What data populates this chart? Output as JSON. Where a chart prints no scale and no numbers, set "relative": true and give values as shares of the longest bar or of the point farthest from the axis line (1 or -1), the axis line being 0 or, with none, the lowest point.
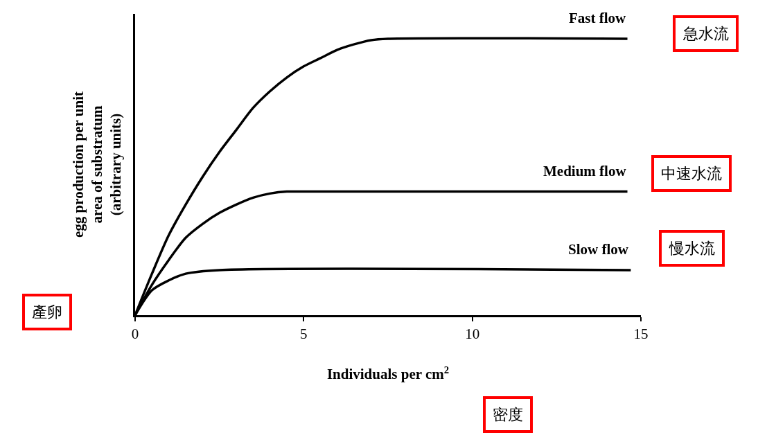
{
  "chart_data": {
    "type": "line",
    "relative": true,
    "xlabel": "Individuals per cm$^{2}$",
    "ylabel": "egg production per unit area of substratum (arbitrary units)",
    "xlim": [
      0,
      15
    ],
    "xticks": [
      0,
      5,
      10,
      15
    ],
    "legend": false,
    "marker": "none",
    "line_style": "solid",
    "series": [
      {
        "name": "Fast flow",
        "color": "#000000",
        "x": [
          0,
          0.5,
          1,
          1.5,
          2,
          2.5,
          3,
          3.5,
          4,
          4.5,
          5,
          5.5,
          6,
          6.5,
          7,
          7.5,
          14.6
        ],
        "values": [
          0,
          0.15,
          0.29,
          0.4,
          0.5,
          0.59,
          0.67,
          0.75,
          0.81,
          0.86,
          0.9,
          0.93,
          0.96,
          0.98,
          0.995,
          1,
          1
        ]
      },
      {
        "name": "Medium flow",
        "color": "#000000",
        "x": [
          0,
          0.5,
          1,
          1.5,
          2,
          2.5,
          3,
          3.5,
          4,
          4.5,
          5,
          14.6
        ],
        "values": [
          0,
          0.11,
          0.2,
          0.28,
          0.33,
          0.37,
          0.4,
          0.425,
          0.44,
          0.447,
          0.447,
          0.447
        ]
      },
      {
        "name": "Slow flow",
        "color": "#000000",
        "x": [
          0,
          0.5,
          1,
          1.5,
          2.5,
          14.7
        ],
        "values": [
          0,
          0.09,
          0.126,
          0.15,
          0.163,
          0.163
        ]
      }
    ],
    "annotations": [
      "急水流",
      "中速水流",
      "慢水流",
      "產卵",
      "密度"
    ]
  }
}
